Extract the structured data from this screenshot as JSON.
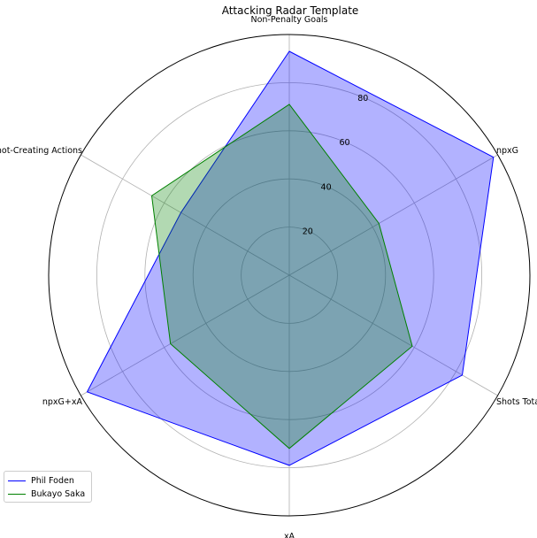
{
  "chart_data": {
    "type": "radar",
    "title": "Attacking Radar Template",
    "axes": [
      "Non-Penalty Goals",
      "npxG",
      "Shots Total",
      "xA",
      "npxG+xA",
      "Shot-Creating Actions"
    ],
    "rlim": [
      0,
      100
    ],
    "rticks": [
      20,
      40,
      60,
      80
    ],
    "grid": true,
    "legend_position": "lower-left",
    "series": [
      {
        "name": "Phil Foden",
        "values": [
          93,
          98,
          83,
          79,
          97,
          52
        ],
        "line_color": "#0000ff",
        "fill_color": "#0000ff",
        "fill_alpha": 0.3
      },
      {
        "name": "Bukayo Saka",
        "values": [
          71,
          43,
          59,
          72,
          57,
          66
        ],
        "line_color": "#008000",
        "fill_color": "#008000",
        "fill_alpha": 0.3
      }
    ]
  }
}
